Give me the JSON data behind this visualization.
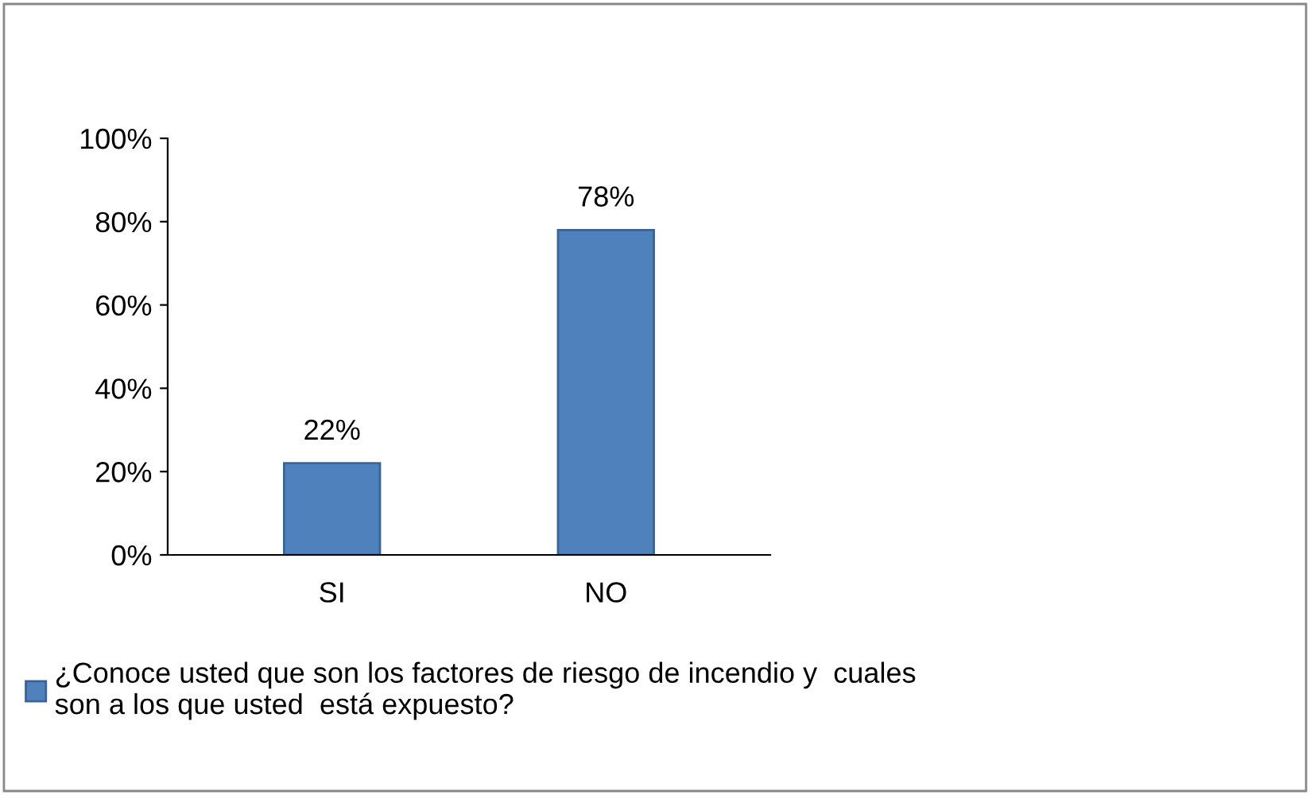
{
  "chart_data": {
    "type": "bar",
    "categories": [
      "SI",
      "NO"
    ],
    "series": [
      {
        "name": "¿Conoce usted que son los factores de riesgo de incendio y  cuales\nson a los que usted  está expuesto?",
        "color": "#4f81bd",
        "values": [
          22,
          78
        ],
        "value_labels": [
          "22%",
          "78%"
        ]
      }
    ],
    "ylim": [
      0,
      100
    ],
    "yticks": [
      {
        "value": 0,
        "label": "0%"
      },
      {
        "value": 20,
        "label": "20%"
      },
      {
        "value": 40,
        "label": "40%"
      },
      {
        "value": 60,
        "label": "60%"
      },
      {
        "value": 80,
        "label": "80%"
      },
      {
        "value": 100,
        "label": "100%"
      }
    ],
    "grid": false,
    "legend": "bottom"
  }
}
